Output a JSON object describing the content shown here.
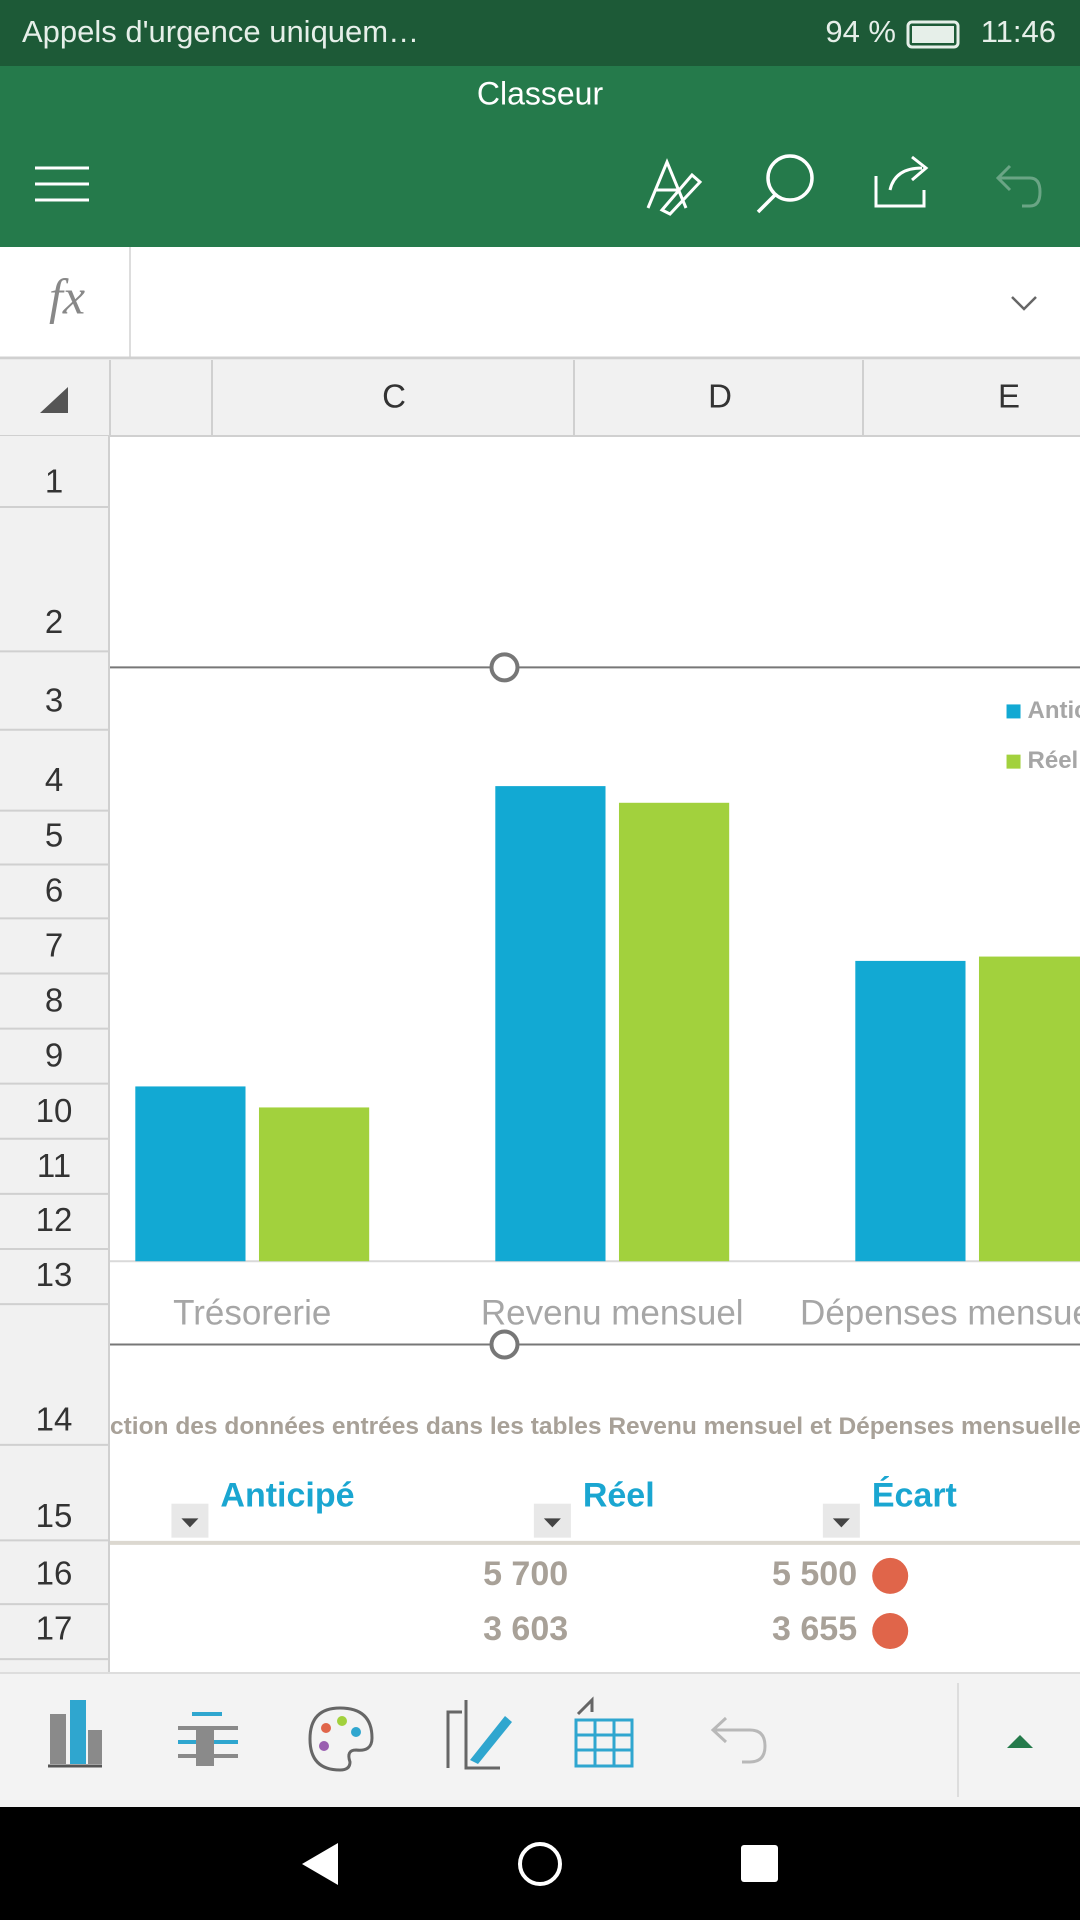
{
  "status_bar": {
    "carrier": "Appels d'urgence uniquem…",
    "battery": "94 %",
    "time": "11:46"
  },
  "app_bar": {
    "title": "Classeur"
  },
  "formula_bar": {
    "label": "fx"
  },
  "columns": [
    "C",
    "D",
    "E"
  ],
  "rows": [
    "1",
    "2",
    "3",
    "4",
    "5",
    "6",
    "7",
    "8",
    "9",
    "10",
    "11",
    "12",
    "13",
    "14",
    "15",
    "16",
    "17"
  ],
  "chart_data": {
    "type": "bar",
    "categories": [
      "Trésorerie",
      "Revenu mensuel",
      "Dépenses mensuelles"
    ],
    "series": [
      {
        "name": "Anticipé",
        "color": "#12a9d3",
        "values": [
          2097,
          5700,
          3603
        ]
      },
      {
        "name": "Réel",
        "color": "#a2d13d",
        "values": [
          1845,
          5500,
          3655
        ]
      }
    ],
    "ylim": [
      0,
      7000
    ],
    "legend": "top-right"
  },
  "caption": "ction des données entrées dans les tables Revenu mensuel et Dépenses mensuelles ci",
  "table": {
    "headers": [
      "Anticipé",
      "Réel",
      "Écart"
    ],
    "rows": [
      [
        "5 700",
        "5 500"
      ],
      [
        "3 603",
        "3 655"
      ]
    ]
  }
}
